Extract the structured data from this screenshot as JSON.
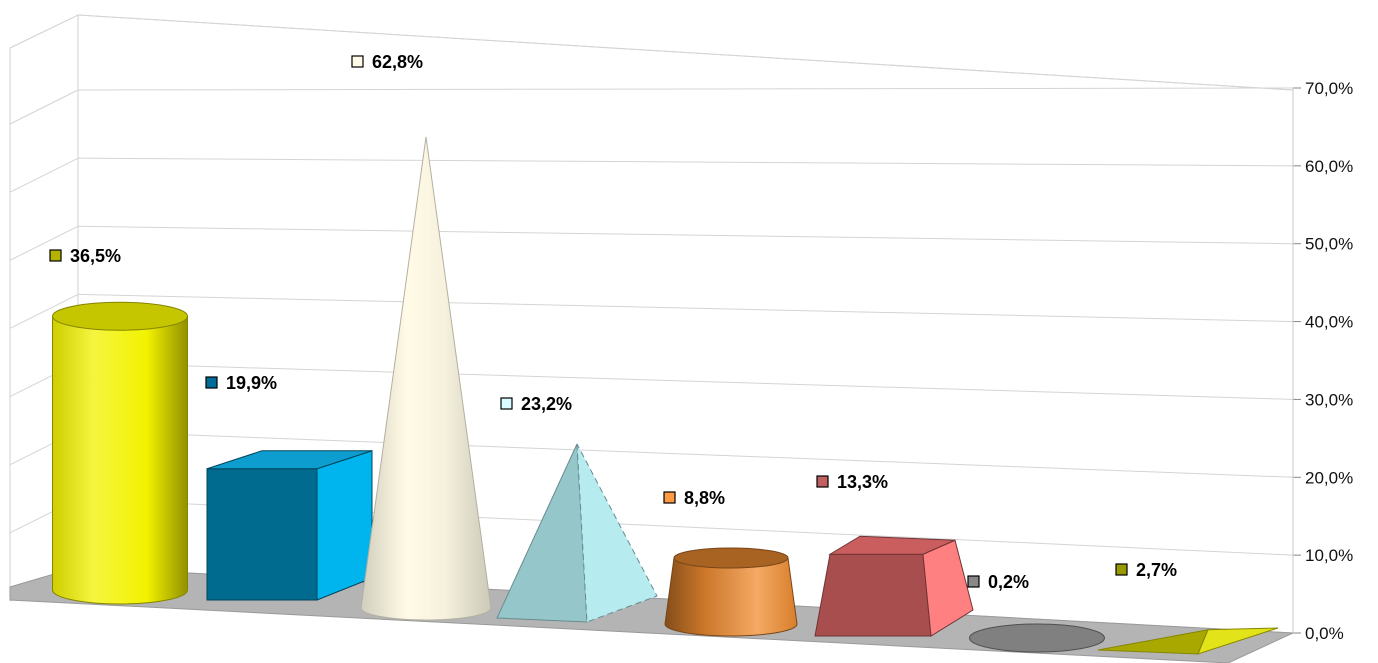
{
  "chart_data": {
    "type": "bar",
    "shapes_3d": true,
    "categories": [
      "",
      "",
      "",
      "",
      "",
      "",
      "",
      ""
    ],
    "values": [
      36.5,
      19.9,
      62.8,
      23.2,
      8.8,
      13.3,
      0.2,
      2.7
    ],
    "data_labels": [
      "36,5%",
      "19,9%",
      "62,8%",
      "23,2%",
      "8,8%",
      "13,3%",
      "0,2%",
      "2,7%"
    ],
    "bar_shapes": [
      "cylinder",
      "box",
      "cone",
      "pyramid",
      "truncated-cone",
      "truncated-pyramid",
      "cylinder",
      "pyramid"
    ],
    "colors": [
      "#f2f200",
      "#0099cc",
      "#fffbe6",
      "#aee9ee",
      "#f08c30",
      "#e06868",
      "#a0a0a0",
      "#e0e000"
    ],
    "label_marker_colors": [
      "#b3b300",
      "#006e99",
      "#fffbe6",
      "#d8fbff",
      "#ff9944",
      "#c06060",
      "#888888",
      "#999900"
    ],
    "y_axis": {
      "position": "right",
      "ticks": [
        "0,0%",
        "10,0%",
        "20,0%",
        "30,0%",
        "40,0%",
        "50,0%",
        "60,0%",
        "70,0%"
      ],
      "ylim": [
        0,
        70
      ]
    },
    "title": "",
    "xlabel": "",
    "ylabel": "",
    "grid": true,
    "legend": "none"
  }
}
